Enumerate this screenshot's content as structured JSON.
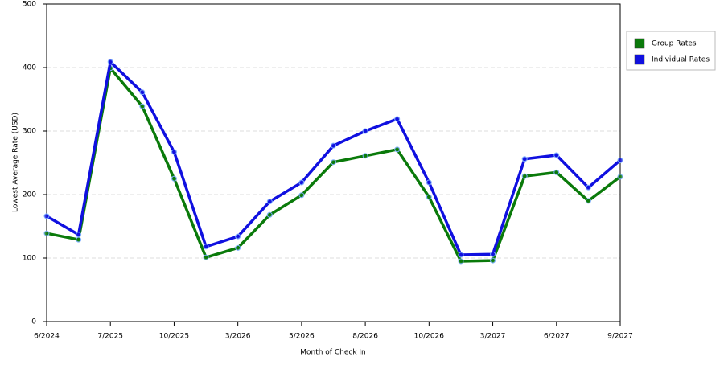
{
  "chart_data": {
    "type": "line",
    "x_label": "Month of Check In",
    "y_label": "Lowest Average Rate (USD)",
    "categories": [
      "6/2024",
      null,
      "7/2025",
      null,
      "10/2025",
      null,
      "3/2026",
      null,
      "5/2026",
      null,
      "8/2026",
      null,
      "10/2026",
      null,
      "3/2027",
      null,
      "6/2027",
      null,
      "9/2027"
    ],
    "series": [
      {
        "name": "Group Rates",
        "color": "#0a7a0a",
        "values": [
          139,
          129,
          399,
          339,
          225,
          101,
          116,
          168,
          199,
          251,
          261,
          271,
          196,
          95,
          96,
          229,
          235,
          190,
          228
        ]
      },
      {
        "name": "Individual Rates",
        "color": "#1010e0",
        "values": [
          166,
          137,
          409,
          361,
          267,
          118,
          134,
          189,
          219,
          277,
          300,
          319,
          219,
          105,
          106,
          256,
          262,
          211,
          254
        ]
      }
    ],
    "ylim": [
      0,
      500
    ],
    "yticks": [
      0,
      100,
      200,
      300,
      400,
      500
    ],
    "grid": true,
    "legend": "right"
  }
}
